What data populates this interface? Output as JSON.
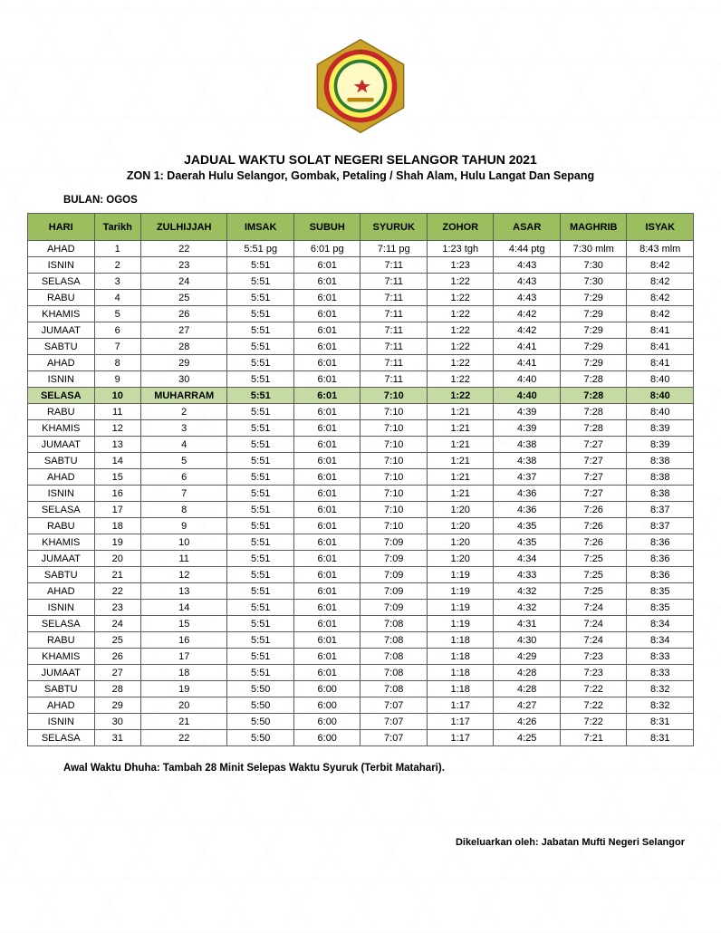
{
  "logo": {
    "outer_color": "#c9a227",
    "ring_colors": [
      "#c62828",
      "#ffee58",
      "#2e7d32"
    ],
    "inner_bg": "#fff9c4",
    "crest_color": "#b8860b"
  },
  "title": "JADUAL WAKTU SOLAT NEGERI SELANGOR TAHUN 2021",
  "subtitle": "ZON 1: Daerah Hulu Selangor, Gombak, Petaling / Shah Alam, Hulu Langat Dan Sepang",
  "month_label": "BULAN: OGOS",
  "columns": [
    "HARI",
    "Tarikh",
    "ZULHIJJAH",
    "IMSAK",
    "SUBUH",
    "SYURUK",
    "ZOHOR",
    "ASAR",
    "MAGHRIB",
    "ISYAK"
  ],
  "highlight_row_index": 9,
  "rows": [
    [
      "AHAD",
      "1",
      "22",
      "5:51 pg",
      "6:01 pg",
      "7:11 pg",
      "1:23 tgh",
      "4:44 ptg",
      "7:30 mlm",
      "8:43 mlm"
    ],
    [
      "ISNIN",
      "2",
      "23",
      "5:51",
      "6:01",
      "7:11",
      "1:23",
      "4:43",
      "7:30",
      "8:42"
    ],
    [
      "SELASA",
      "3",
      "24",
      "5:51",
      "6:01",
      "7:11",
      "1:22",
      "4:43",
      "7:30",
      "8:42"
    ],
    [
      "RABU",
      "4",
      "25",
      "5:51",
      "6:01",
      "7:11",
      "1:22",
      "4:43",
      "7:29",
      "8:42"
    ],
    [
      "KHAMIS",
      "5",
      "26",
      "5:51",
      "6:01",
      "7:11",
      "1:22",
      "4:42",
      "7:29",
      "8:42"
    ],
    [
      "JUMAAT",
      "6",
      "27",
      "5:51",
      "6:01",
      "7:11",
      "1:22",
      "4:42",
      "7:29",
      "8:41"
    ],
    [
      "SABTU",
      "7",
      "28",
      "5:51",
      "6:01",
      "7:11",
      "1:22",
      "4:41",
      "7:29",
      "8:41"
    ],
    [
      "AHAD",
      "8",
      "29",
      "5:51",
      "6:01",
      "7:11",
      "1:22",
      "4:41",
      "7:29",
      "8:41"
    ],
    [
      "ISNIN",
      "9",
      "30",
      "5:51",
      "6:01",
      "7:11",
      "1:22",
      "4:40",
      "7:28",
      "8:40"
    ],
    [
      "SELASA",
      "10",
      "MUHARRAM",
      "5:51",
      "6:01",
      "7:10",
      "1:22",
      "4:40",
      "7:28",
      "8:40"
    ],
    [
      "RABU",
      "11",
      "2",
      "5:51",
      "6:01",
      "7:10",
      "1:21",
      "4:39",
      "7:28",
      "8:40"
    ],
    [
      "KHAMIS",
      "12",
      "3",
      "5:51",
      "6:01",
      "7:10",
      "1:21",
      "4:39",
      "7:28",
      "8:39"
    ],
    [
      "JUMAAT",
      "13",
      "4",
      "5:51",
      "6:01",
      "7:10",
      "1:21",
      "4:38",
      "7:27",
      "8:39"
    ],
    [
      "SABTU",
      "14",
      "5",
      "5:51",
      "6:01",
      "7:10",
      "1:21",
      "4:38",
      "7:27",
      "8:38"
    ],
    [
      "AHAD",
      "15",
      "6",
      "5:51",
      "6:01",
      "7:10",
      "1:21",
      "4:37",
      "7:27",
      "8:38"
    ],
    [
      "ISNIN",
      "16",
      "7",
      "5:51",
      "6:01",
      "7:10",
      "1:21",
      "4:36",
      "7:27",
      "8:38"
    ],
    [
      "SELASA",
      "17",
      "8",
      "5:51",
      "6:01",
      "7:10",
      "1:20",
      "4:36",
      "7:26",
      "8:37"
    ],
    [
      "RABU",
      "18",
      "9",
      "5:51",
      "6:01",
      "7:10",
      "1:20",
      "4:35",
      "7:26",
      "8:37"
    ],
    [
      "KHAMIS",
      "19",
      "10",
      "5:51",
      "6:01",
      "7:09",
      "1:20",
      "4:35",
      "7:26",
      "8:36"
    ],
    [
      "JUMAAT",
      "20",
      "11",
      "5:51",
      "6:01",
      "7:09",
      "1:20",
      "4:34",
      "7:25",
      "8:36"
    ],
    [
      "SABTU",
      "21",
      "12",
      "5:51",
      "6:01",
      "7:09",
      "1:19",
      "4:33",
      "7:25",
      "8:36"
    ],
    [
      "AHAD",
      "22",
      "13",
      "5:51",
      "6:01",
      "7:09",
      "1:19",
      "4:32",
      "7:25",
      "8:35"
    ],
    [
      "ISNIN",
      "23",
      "14",
      "5:51",
      "6:01",
      "7:09",
      "1:19",
      "4:32",
      "7:24",
      "8:35"
    ],
    [
      "SELASA",
      "24",
      "15",
      "5:51",
      "6:01",
      "7:08",
      "1:19",
      "4:31",
      "7:24",
      "8:34"
    ],
    [
      "RABU",
      "25",
      "16",
      "5:51",
      "6:01",
      "7:08",
      "1:18",
      "4:30",
      "7:24",
      "8:34"
    ],
    [
      "KHAMIS",
      "26",
      "17",
      "5:51",
      "6:01",
      "7:08",
      "1:18",
      "4:29",
      "7:23",
      "8:33"
    ],
    [
      "JUMAAT",
      "27",
      "18",
      "5:51",
      "6:01",
      "7:08",
      "1:18",
      "4:28",
      "7:23",
      "8:33"
    ],
    [
      "SABTU",
      "28",
      "19",
      "5:50",
      "6:00",
      "7:08",
      "1:18",
      "4:28",
      "7:22",
      "8:32"
    ],
    [
      "AHAD",
      "29",
      "20",
      "5:50",
      "6:00",
      "7:07",
      "1:17",
      "4:27",
      "7:22",
      "8:32"
    ],
    [
      "ISNIN",
      "30",
      "21",
      "5:50",
      "6:00",
      "7:07",
      "1:17",
      "4:26",
      "7:22",
      "8:31"
    ],
    [
      "SELASA",
      "31",
      "22",
      "5:50",
      "6:00",
      "7:07",
      "1:17",
      "4:25",
      "7:21",
      "8:31"
    ]
  ],
  "footer_note": "Awal Waktu Dhuha: Tambah 28 Minit Selepas Waktu Syuruk (Terbit Matahari).",
  "issued_by": "Dikeluarkan oleh: Jabatan Mufti Negeri Selangor"
}
